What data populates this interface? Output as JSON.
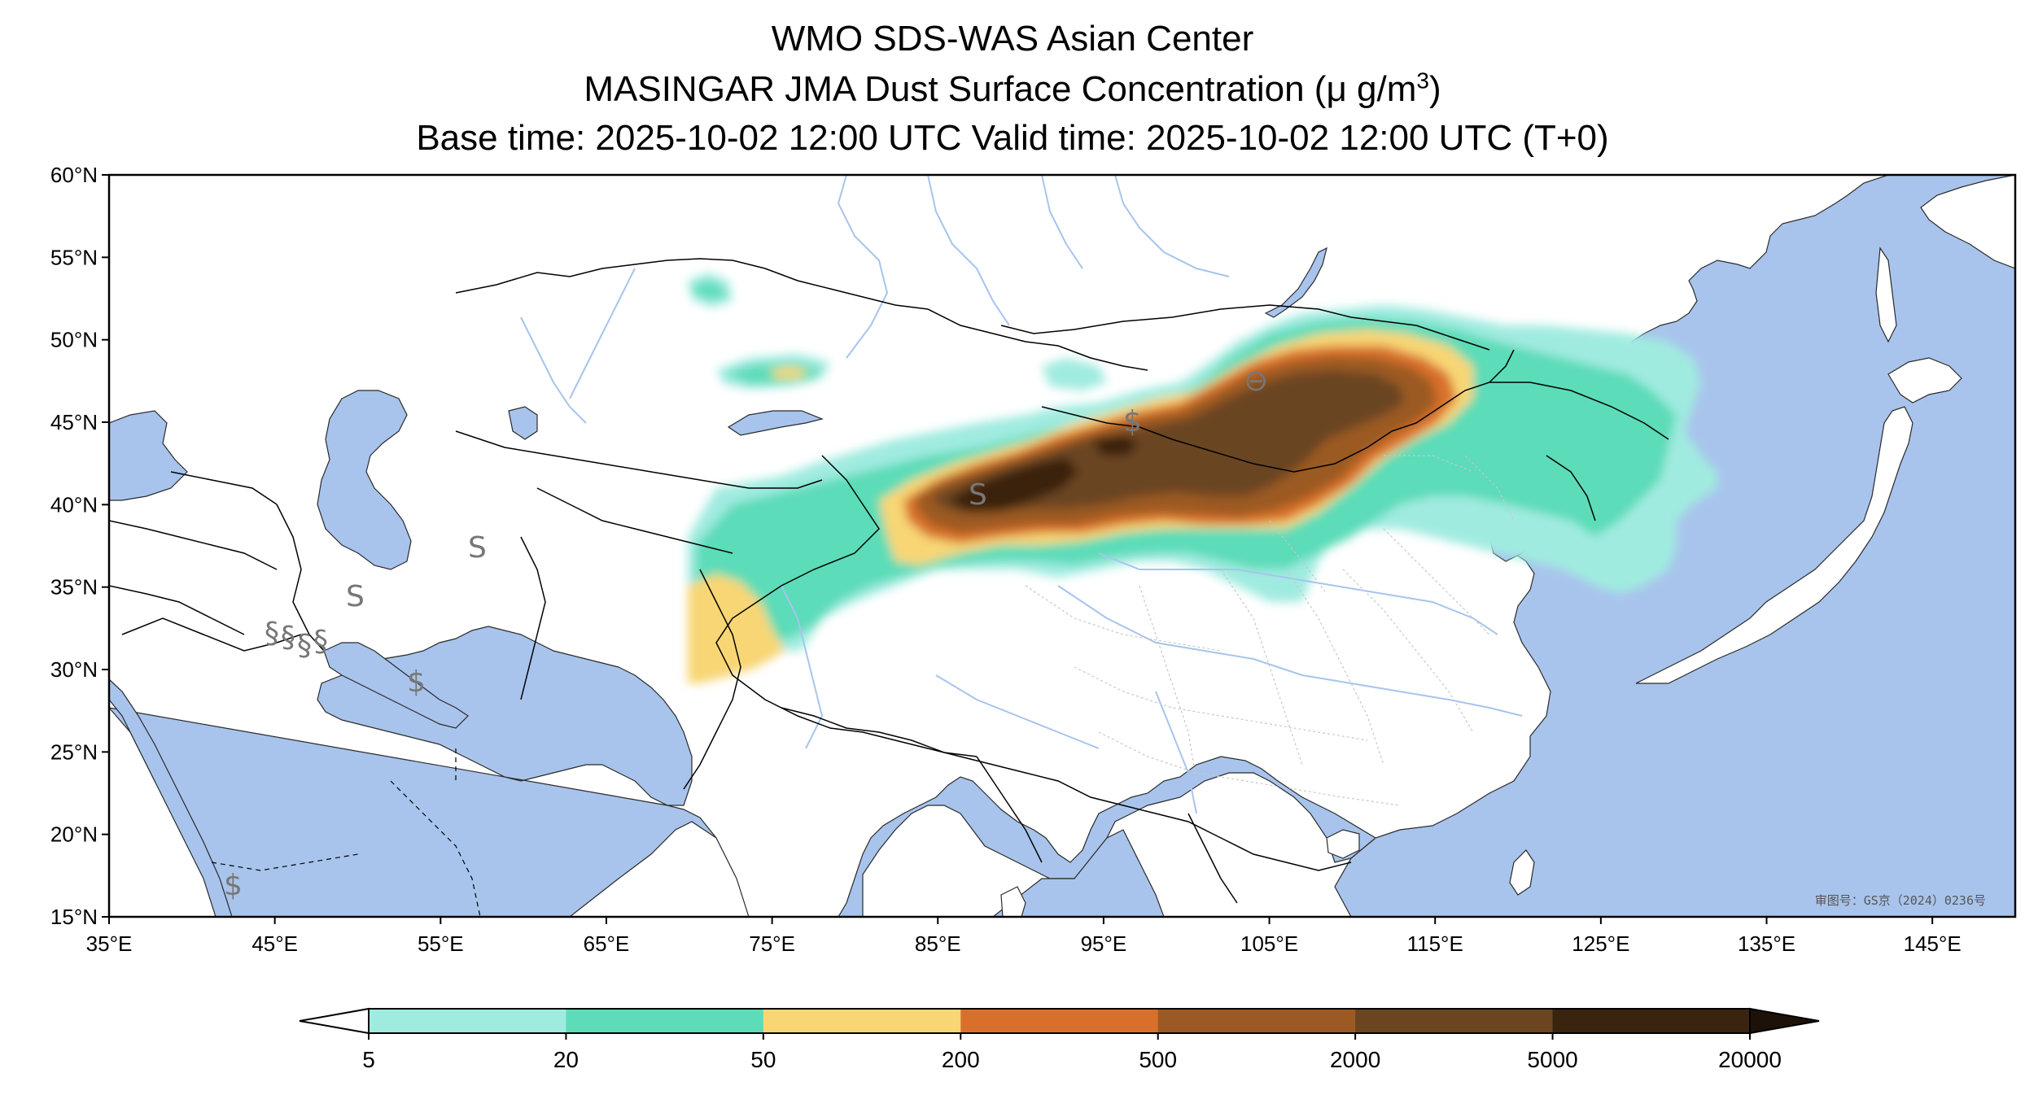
{
  "header": {
    "line1": "WMO SDS-WAS Asian Center",
    "line2_prefix": "MASINGAR JMA Dust Surface Concentration (",
    "line2_unit": "μ g/m",
    "line2_exp": "3",
    "line2_suffix": ")",
    "line3": "Base time: 2025-10-02 12:00 UTC Valid time: 2025-10-02 12:00 UTC (T+0)"
  },
  "map": {
    "lon_range": [
      35,
      150
    ],
    "lat_range": [
      15,
      60
    ],
    "lon_ticks": [
      "35°E",
      "45°E",
      "55°E",
      "65°E",
      "75°E",
      "85°E",
      "95°E",
      "105°E",
      "115°E",
      "125°E",
      "135°E",
      "145°E"
    ],
    "lat_ticks": [
      "60°N",
      "55°N",
      "50°N",
      "45°N",
      "40°N",
      "35°N",
      "30°N",
      "25°N",
      "20°N",
      "15°N"
    ],
    "approval_stamp": "审图号：GS京（2024）0236号",
    "colors": {
      "ocean": "#a8c4ec",
      "land": "#ffffff",
      "river": "#a8c4ec",
      "border": "#000000"
    }
  },
  "colorbar": {
    "extend": "both",
    "levels": [
      "5",
      "20",
      "50",
      "200",
      "500",
      "2000",
      "5000",
      "20000"
    ],
    "colors": [
      "#a0ebe0",
      "#5cdcb8",
      "#f8d674",
      "#d8702c",
      "#9b5a24",
      "#6b4520",
      "#3a2410"
    ],
    "under_color": "#ffffff",
    "over_color": "#1e1208"
  }
}
